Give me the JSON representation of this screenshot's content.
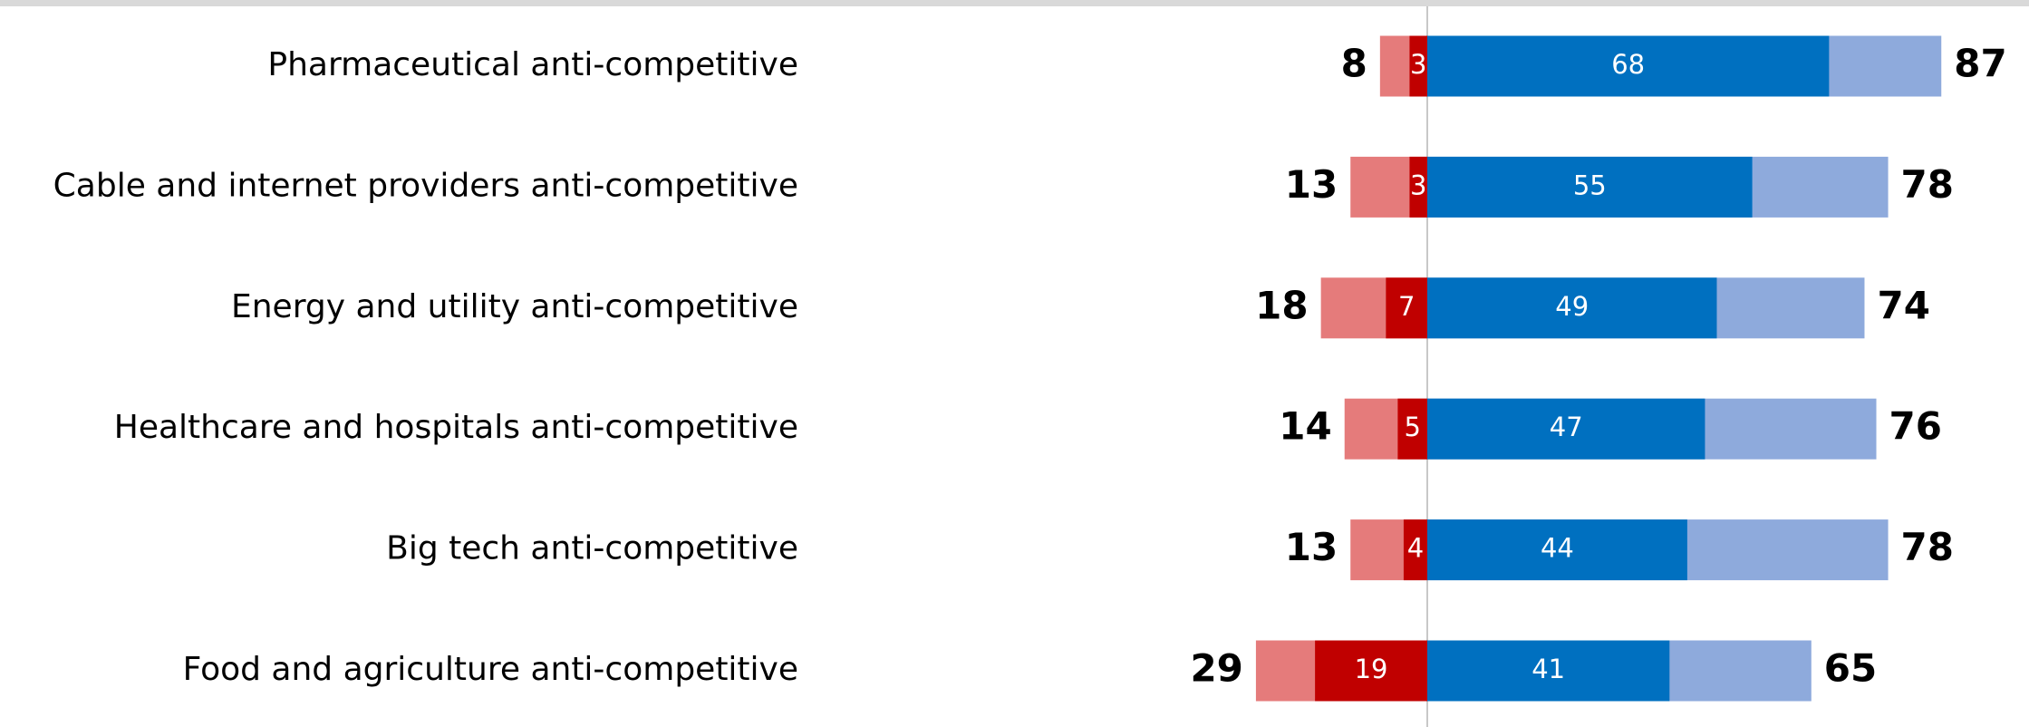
{
  "chart_data": {
    "type": "diverging-bar",
    "categories": [
      "Pharmaceutical anti-competitive",
      "Cable and internet providers anti-competitive",
      "Energy and utility anti-competitive",
      "Healthcare and hospitals anti-competitive",
      "Big tech anti-competitive",
      "Food and agriculture anti-competitive"
    ],
    "series": [
      {
        "color": "#e57b7b",
        "direction": "left",
        "label_position": "outside",
        "values": [
          8,
          13,
          18,
          14,
          13,
          29
        ]
      },
      {
        "color": "#c00000",
        "direction": "left",
        "label_position": "inside",
        "values": [
          3,
          3,
          7,
          5,
          4,
          19
        ]
      },
      {
        "color": "#8eaadc",
        "direction": "right",
        "label_position": "outside",
        "values": [
          87,
          78,
          74,
          76,
          78,
          65
        ]
      },
      {
        "color": "#0070c0",
        "direction": "right",
        "label_position": "inside",
        "values": [
          68,
          55,
          49,
          47,
          44,
          41
        ]
      }
    ]
  }
}
